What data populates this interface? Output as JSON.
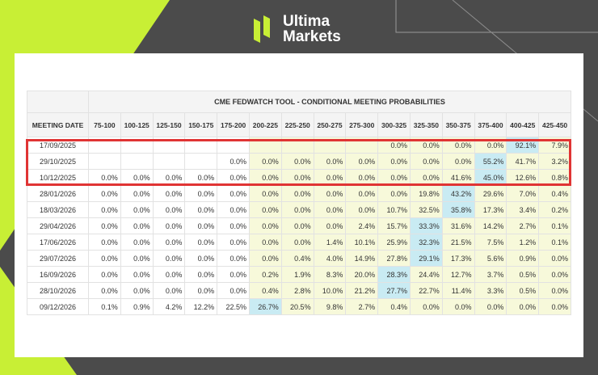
{
  "brand": {
    "line1": "Ultima",
    "line2": "Markets"
  },
  "colors": {
    "accent": "#c8ef35",
    "background": "#4b4b4b",
    "highlight_border": "#e03434",
    "cell_low": "#f7f9da",
    "cell_high": "#c9ebf3"
  },
  "table": {
    "title": "CME FEDWATCH TOOL - CONDITIONAL MEETING PROBABILITIES",
    "date_header": "MEETING DATE",
    "columns": [
      "75-100",
      "100-125",
      "125-150",
      "150-175",
      "175-200",
      "200-225",
      "225-250",
      "250-275",
      "275-300",
      "300-325",
      "325-350",
      "350-375",
      "375-400",
      "400-425",
      "425-450"
    ],
    "rows": [
      {
        "date": "17/09/2025",
        "values": [
          "",
          "",
          "",
          "",
          "",
          "",
          "",
          "",
          "",
          "0.0%",
          "0.0%",
          "0.0%",
          "0.0%",
          "92.1%",
          "7.9%"
        ],
        "highlight": 13
      },
      {
        "date": "29/10/2025",
        "values": [
          "",
          "",
          "",
          "",
          "0.0%",
          "0.0%",
          "0.0%",
          "0.0%",
          "0.0%",
          "0.0%",
          "0.0%",
          "0.0%",
          "55.2%",
          "41.7%",
          "3.2%"
        ],
        "highlight": 12
      },
      {
        "date": "10/12/2025",
        "values": [
          "0.0%",
          "0.0%",
          "0.0%",
          "0.0%",
          "0.0%",
          "0.0%",
          "0.0%",
          "0.0%",
          "0.0%",
          "0.0%",
          "0.0%",
          "41.6%",
          "45.0%",
          "12.6%",
          "0.8%"
        ],
        "highlight": 12
      },
      {
        "date": "28/01/2026",
        "values": [
          "0.0%",
          "0.0%",
          "0.0%",
          "0.0%",
          "0.0%",
          "0.0%",
          "0.0%",
          "0.0%",
          "0.0%",
          "0.0%",
          "19.8%",
          "43.2%",
          "29.6%",
          "7.0%",
          "0.4%"
        ],
        "highlight": 11
      },
      {
        "date": "18/03/2026",
        "values": [
          "0.0%",
          "0.0%",
          "0.0%",
          "0.0%",
          "0.0%",
          "0.0%",
          "0.0%",
          "0.0%",
          "0.0%",
          "10.7%",
          "32.5%",
          "35.8%",
          "17.3%",
          "3.4%",
          "0.2%"
        ],
        "highlight": 11
      },
      {
        "date": "29/04/2026",
        "values": [
          "0.0%",
          "0.0%",
          "0.0%",
          "0.0%",
          "0.0%",
          "0.0%",
          "0.0%",
          "0.0%",
          "2.4%",
          "15.7%",
          "33.3%",
          "31.6%",
          "14.2%",
          "2.7%",
          "0.1%"
        ],
        "highlight": 10
      },
      {
        "date": "17/06/2026",
        "values": [
          "0.0%",
          "0.0%",
          "0.0%",
          "0.0%",
          "0.0%",
          "0.0%",
          "0.0%",
          "1.4%",
          "10.1%",
          "25.9%",
          "32.3%",
          "21.5%",
          "7.5%",
          "1.2%",
          "0.1%"
        ],
        "highlight": 10
      },
      {
        "date": "29/07/2026",
        "values": [
          "0.0%",
          "0.0%",
          "0.0%",
          "0.0%",
          "0.0%",
          "0.0%",
          "0.4%",
          "4.0%",
          "14.9%",
          "27.8%",
          "29.1%",
          "17.3%",
          "5.6%",
          "0.9%",
          "0.0%"
        ],
        "highlight": 10
      },
      {
        "date": "16/09/2026",
        "values": [
          "0.0%",
          "0.0%",
          "0.0%",
          "0.0%",
          "0.0%",
          "0.2%",
          "1.9%",
          "8.3%",
          "20.0%",
          "28.3%",
          "24.4%",
          "12.7%",
          "3.7%",
          "0.5%",
          "0.0%"
        ],
        "highlight": 9
      },
      {
        "date": "28/10/2026",
        "values": [
          "0.0%",
          "0.0%",
          "0.0%",
          "0.0%",
          "0.0%",
          "0.4%",
          "2.8%",
          "10.0%",
          "21.2%",
          "27.7%",
          "22.7%",
          "11.4%",
          "3.3%",
          "0.5%",
          "0.0%"
        ],
        "highlight": 9
      },
      {
        "date": "09/12/2026",
        "values": [
          "0.1%",
          "0.9%",
          "4.2%",
          "12.2%",
          "22.5%",
          "26.7%",
          "20.5%",
          "9.8%",
          "2.7%",
          "0.4%",
          "0.0%",
          "0.0%",
          "0.0%",
          "0.0%",
          "0.0%"
        ],
        "highlight": 5
      }
    ],
    "low_prob_start_col": 5
  }
}
